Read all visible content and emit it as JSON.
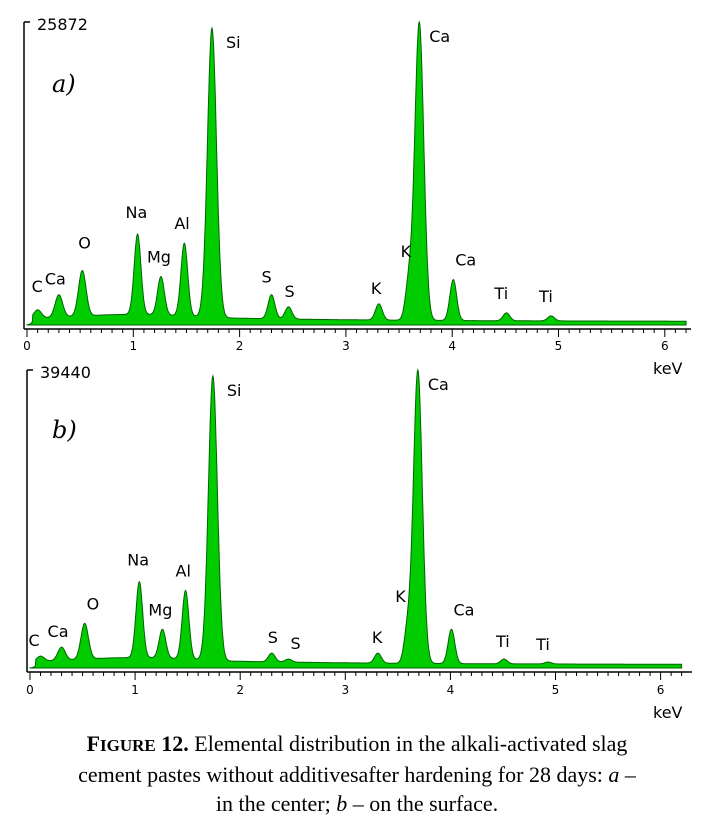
{
  "chart_data": [
    {
      "type": "area",
      "panel_label": "a)",
      "y_max_label": "25872",
      "xlabel": "keV",
      "xlim": [
        0,
        6.2
      ],
      "x_ticks": [
        "0",
        "1",
        "2",
        "3",
        "4",
        "5",
        "6"
      ],
      "fill_color": "#00cc00",
      "peaks": [
        {
          "label": "C",
          "x": 0.1,
          "y": 0.05
        },
        {
          "label": "Ca",
          "x": 0.3,
          "y": 0.1
        },
        {
          "label": "O",
          "x": 0.52,
          "y": 0.18
        },
        {
          "label": "Na",
          "x": 1.04,
          "y": 0.3
        },
        {
          "label": "Mg",
          "x": 1.26,
          "y": 0.16
        },
        {
          "label": "Al",
          "x": 1.48,
          "y": 0.27
        },
        {
          "label": "Si",
          "x": 1.74,
          "y": 0.98
        },
        {
          "label": "S",
          "x": 2.3,
          "y": 0.1
        },
        {
          "label": "S",
          "x": 2.46,
          "y": 0.06
        },
        {
          "label": "K",
          "x": 3.31,
          "y": 0.07
        },
        {
          "label": "K",
          "x": 3.59,
          "y": 0.13
        },
        {
          "label": "Ca",
          "x": 3.69,
          "y": 1.0
        },
        {
          "label": "Ca",
          "x": 4.01,
          "y": 0.15
        },
        {
          "label": "Ti",
          "x": 4.51,
          "y": 0.04
        },
        {
          "label": "Ti",
          "x": 4.93,
          "y": 0.03
        }
      ]
    },
    {
      "type": "area",
      "panel_label": "b)",
      "y_max_label": "39440",
      "xlabel": "keV",
      "xlim": [
        0,
        6.2
      ],
      "x_ticks": [
        "0",
        "1",
        "2",
        "3",
        "4",
        "5",
        "6"
      ],
      "fill_color": "#00cc00",
      "peaks": [
        {
          "label": "C",
          "x": 0.1,
          "y": 0.04
        },
        {
          "label": "Ca",
          "x": 0.3,
          "y": 0.07
        },
        {
          "label": "O",
          "x": 0.52,
          "y": 0.15
        },
        {
          "label": "Na",
          "x": 1.04,
          "y": 0.29
        },
        {
          "label": "Mg",
          "x": 1.26,
          "y": 0.13
        },
        {
          "label": "Al",
          "x": 1.48,
          "y": 0.26
        },
        {
          "label": "Si",
          "x": 1.74,
          "y": 0.98
        },
        {
          "label": "S",
          "x": 2.3,
          "y": 0.05
        },
        {
          "label": "S",
          "x": 2.46,
          "y": 0.03
        },
        {
          "label": "K",
          "x": 3.31,
          "y": 0.05
        },
        {
          "label": "K",
          "x": 3.59,
          "y": 0.12
        },
        {
          "label": "Ca",
          "x": 3.69,
          "y": 1.0
        },
        {
          "label": "Ca",
          "x": 4.01,
          "y": 0.13
        },
        {
          "label": "Ti",
          "x": 4.51,
          "y": 0.03
        },
        {
          "label": "Ti",
          "x": 4.93,
          "y": 0.02
        }
      ]
    }
  ],
  "caption": {
    "head_initial": "F",
    "head_small": "IGURE",
    "head_number": " 12.",
    "line1": " Elemental distribution in the alkali-activated slag",
    "line2a": "cement pastes without additivesafter hardening for 28 days: ",
    "a": "a",
    "dash1": " –",
    "line3a": "in the center; ",
    "b": "b",
    "line3b": " – on the surface."
  }
}
